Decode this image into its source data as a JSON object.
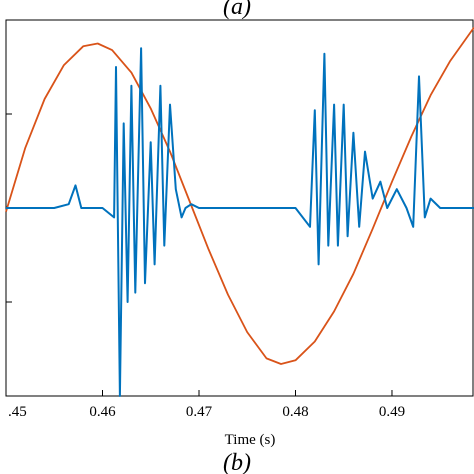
{
  "captions": {
    "top": "(a)",
    "bottom": "(b)"
  },
  "chart_data": {
    "type": "line",
    "title": "",
    "xlabel": "Time (s)",
    "ylabel": "",
    "xlim": [
      0.45,
      0.4985
    ],
    "ylim": [
      -1.0,
      1.0
    ],
    "xticks": [
      0.45,
      0.46,
      0.47,
      0.48,
      0.49
    ],
    "xtick_labels": [
      ".45",
      "0.46",
      "0.47",
      "0.48",
      "0.49"
    ],
    "grid": false,
    "legend": "none",
    "colors": {
      "voltage": "#D95319",
      "current": "#0072BD",
      "axes": "#000000"
    },
    "series": [
      {
        "key": "voltage",
        "name": "",
        "description_shape": "sinusoid",
        "x": [
          0.45,
          0.452,
          0.454,
          0.456,
          0.458,
          0.4595,
          0.461,
          0.463,
          0.465,
          0.467,
          0.469,
          0.471,
          0.473,
          0.475,
          0.477,
          0.4785,
          0.48,
          0.482,
          0.484,
          0.486,
          0.488,
          0.49,
          0.492,
          0.494,
          0.496,
          0.4985
        ],
        "values": [
          -0.02,
          0.32,
          0.58,
          0.76,
          0.86,
          0.875,
          0.84,
          0.72,
          0.53,
          0.3,
          0.04,
          -0.22,
          -0.46,
          -0.66,
          -0.8,
          -0.83,
          -0.81,
          -0.71,
          -0.55,
          -0.35,
          -0.11,
          0.14,
          0.38,
          0.6,
          0.78,
          0.96
        ]
      },
      {
        "key": "current",
        "name": "",
        "x": [
          0.45,
          0.455,
          0.4565,
          0.4572,
          0.4578,
          0.4586,
          0.46,
          0.4612,
          0.4614,
          0.4618,
          0.4622,
          0.4626,
          0.463,
          0.4634,
          0.464,
          0.4644,
          0.465,
          0.4654,
          0.466,
          0.4664,
          0.467,
          0.4676,
          0.4682,
          0.4686,
          0.4692,
          0.47,
          0.475,
          0.48,
          0.4815,
          0.482,
          0.4824,
          0.483,
          0.4834,
          0.484,
          0.4844,
          0.485,
          0.4854,
          0.486,
          0.4866,
          0.4872,
          0.488,
          0.4888,
          0.4895,
          0.4905,
          0.4915,
          0.4922,
          0.4928,
          0.4934,
          0.494,
          0.495,
          0.4985
        ],
        "values": [
          0.0,
          0.0,
          0.02,
          0.12,
          0.0,
          0.0,
          0.0,
          -0.05,
          0.75,
          -1.0,
          0.45,
          -0.5,
          0.65,
          -0.45,
          0.85,
          -0.4,
          0.35,
          -0.3,
          0.65,
          -0.2,
          0.55,
          0.1,
          -0.05,
          0.0,
          0.02,
          0.0,
          0.0,
          0.0,
          -0.1,
          0.52,
          -0.3,
          0.82,
          -0.2,
          0.55,
          -0.2,
          0.55,
          -0.15,
          0.4,
          -0.1,
          0.3,
          0.05,
          0.14,
          0.0,
          0.1,
          0.0,
          -0.1,
          0.7,
          -0.05,
          0.05,
          0.0,
          0.0
        ]
      }
    ]
  }
}
